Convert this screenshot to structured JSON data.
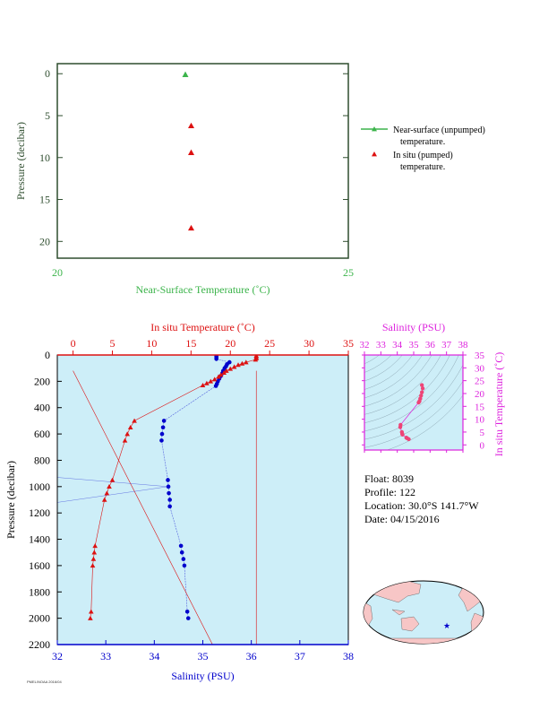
{
  "colors": {
    "green": "#3cb44b",
    "axis_green": "#2e4d2e",
    "red": "#dd1111",
    "blue": "#0000cc",
    "magenta": "#dd22dd",
    "panel_bg": "#cdeef8",
    "land": "#f7c6c6",
    "ocean": "#cdeef8"
  },
  "info": {
    "float": "Float:  8039",
    "profile": "Profile:  122",
    "location": "Location:  30.0°S  141.7°W",
    "date": "Date:  04/15/2016"
  },
  "stamp": "PMEL/NOAA 2016/04",
  "chart_data": [
    {
      "type": "scatter",
      "xlabel": "Near-Surface Temperature (˚C)",
      "ylabel": "Pressure (decibar)",
      "xlim": [
        20,
        25
      ],
      "ylim": [
        22,
        -1.2
      ],
      "xticks": [
        "20",
        "25"
      ],
      "yticks": [
        "0",
        "5",
        "10",
        "15",
        "20"
      ],
      "series": [
        {
          "name": "Near-surface (unpumped) temperature.",
          "legend_lines": [
            "Near-surface (unpumped)",
            "temperature."
          ],
          "marker": "triangle",
          "color": "#3cb44b",
          "points": [
            [
              22.2,
              0.1
            ]
          ]
        },
        {
          "name": "In situ (pumped) temperature.",
          "legend_lines": [
            "In situ (pumped)",
            "temperature."
          ],
          "marker": "triangle",
          "color": "#dd1111",
          "points": [
            [
              22.3,
              6.2
            ],
            [
              22.3,
              9.4
            ],
            [
              22.3,
              18.4
            ]
          ]
        }
      ]
    },
    {
      "type": "line",
      "ylabel": "Pressure (decibar)",
      "ylim": [
        2200,
        0
      ],
      "yticks": [
        "0",
        "200",
        "400",
        "600",
        "800",
        "1000",
        "1200",
        "1400",
        "1600",
        "1800",
        "2000",
        "2200"
      ],
      "top_axis": {
        "label": "In situ Temperature (˚C)",
        "xlim": [
          -2,
          35
        ],
        "ticks": [
          "0",
          "5",
          "10",
          "15",
          "20",
          "25",
          "30",
          "35"
        ]
      },
      "bottom_axis": {
        "label": "Salinity (PSU)",
        "xlim": [
          32,
          38
        ],
        "ticks": [
          "32",
          "33",
          "34",
          "35",
          "36",
          "37",
          "38"
        ]
      },
      "series": [
        {
          "name": "In situ Temperature",
          "color": "#dd1111",
          "marker": "triangle",
          "points": [
            [
              23.3,
              5
            ],
            [
              23.3,
              15
            ],
            [
              23.3,
              25
            ],
            [
              23.2,
              35
            ],
            [
              22.0,
              55
            ],
            [
              21.5,
              65
            ],
            [
              21.0,
              75
            ],
            [
              20.5,
              90
            ],
            [
              20.0,
              105
            ],
            [
              19.5,
              120
            ],
            [
              19.2,
              135
            ],
            [
              18.8,
              150
            ],
            [
              18.5,
              165
            ],
            [
              18.0,
              185
            ],
            [
              17.5,
              200
            ],
            [
              17.0,
              215
            ],
            [
              16.5,
              230
            ],
            [
              7.8,
              500
            ],
            [
              7.3,
              550
            ],
            [
              6.9,
              600
            ],
            [
              6.6,
              650
            ],
            [
              5.0,
              950
            ],
            [
              4.6,
              1000
            ],
            [
              4.3,
              1050
            ],
            [
              4.0,
              1100
            ],
            [
              2.8,
              1450
            ],
            [
              2.7,
              1500
            ],
            [
              2.6,
              1550
            ],
            [
              2.5,
              1600
            ],
            [
              2.3,
              1950
            ],
            [
              2.2,
              2000
            ]
          ]
        },
        {
          "name": "Salinity",
          "color": "#0000cc",
          "marker": "circle",
          "points": [
            [
              35.28,
              10
            ],
            [
              35.28,
              20
            ],
            [
              35.28,
              30
            ],
            [
              35.55,
              55
            ],
            [
              35.5,
              70
            ],
            [
              35.48,
              85
            ],
            [
              35.45,
              100
            ],
            [
              35.42,
              120
            ],
            [
              35.4,
              140
            ],
            [
              35.37,
              160
            ],
            [
              35.34,
              180
            ],
            [
              35.31,
              200
            ],
            [
              35.29,
              220
            ],
            [
              35.27,
              235
            ],
            [
              34.2,
              500
            ],
            [
              34.18,
              550
            ],
            [
              34.16,
              600
            ],
            [
              34.15,
              650
            ],
            [
              34.28,
              950
            ],
            [
              34.29,
              1000
            ],
            [
              34.3,
              1050
            ],
            [
              34.32,
              1100
            ],
            [
              34.32,
              1150
            ],
            [
              34.55,
              1450
            ],
            [
              34.57,
              1500
            ],
            [
              34.6,
              1550
            ],
            [
              34.62,
              1600
            ],
            [
              34.68,
              1950
            ],
            [
              34.7,
              2000
            ]
          ]
        }
      ]
    },
    {
      "type": "scatter",
      "xlabel": "Salinity (PSU)",
      "ylabel": "In situ Temperature (˚C)",
      "xlim": [
        32,
        38
      ],
      "ylim": [
        -2,
        35
      ],
      "xticks": [
        "32",
        "33",
        "34",
        "35",
        "36",
        "37",
        "38"
      ],
      "yticks": [
        "0",
        "5",
        "10",
        "15",
        "20",
        "25",
        "30",
        "35"
      ],
      "series": [
        {
          "name": "T-S",
          "color": "#ee4477",
          "points": [
            [
              35.5,
              23.3
            ],
            [
              35.55,
              22.0
            ],
            [
              35.5,
              20.5
            ],
            [
              35.45,
              19.2
            ],
            [
              35.4,
              18.0
            ],
            [
              35.35,
              17.0
            ],
            [
              35.3,
              16.5
            ],
            [
              34.2,
              7.8
            ],
            [
              34.18,
              6.9
            ],
            [
              34.28,
              5.0
            ],
            [
              34.3,
              4.3
            ],
            [
              34.32,
              4.0
            ],
            [
              34.55,
              2.8
            ],
            [
              34.6,
              2.6
            ],
            [
              34.7,
              2.2
            ]
          ]
        }
      ]
    }
  ]
}
